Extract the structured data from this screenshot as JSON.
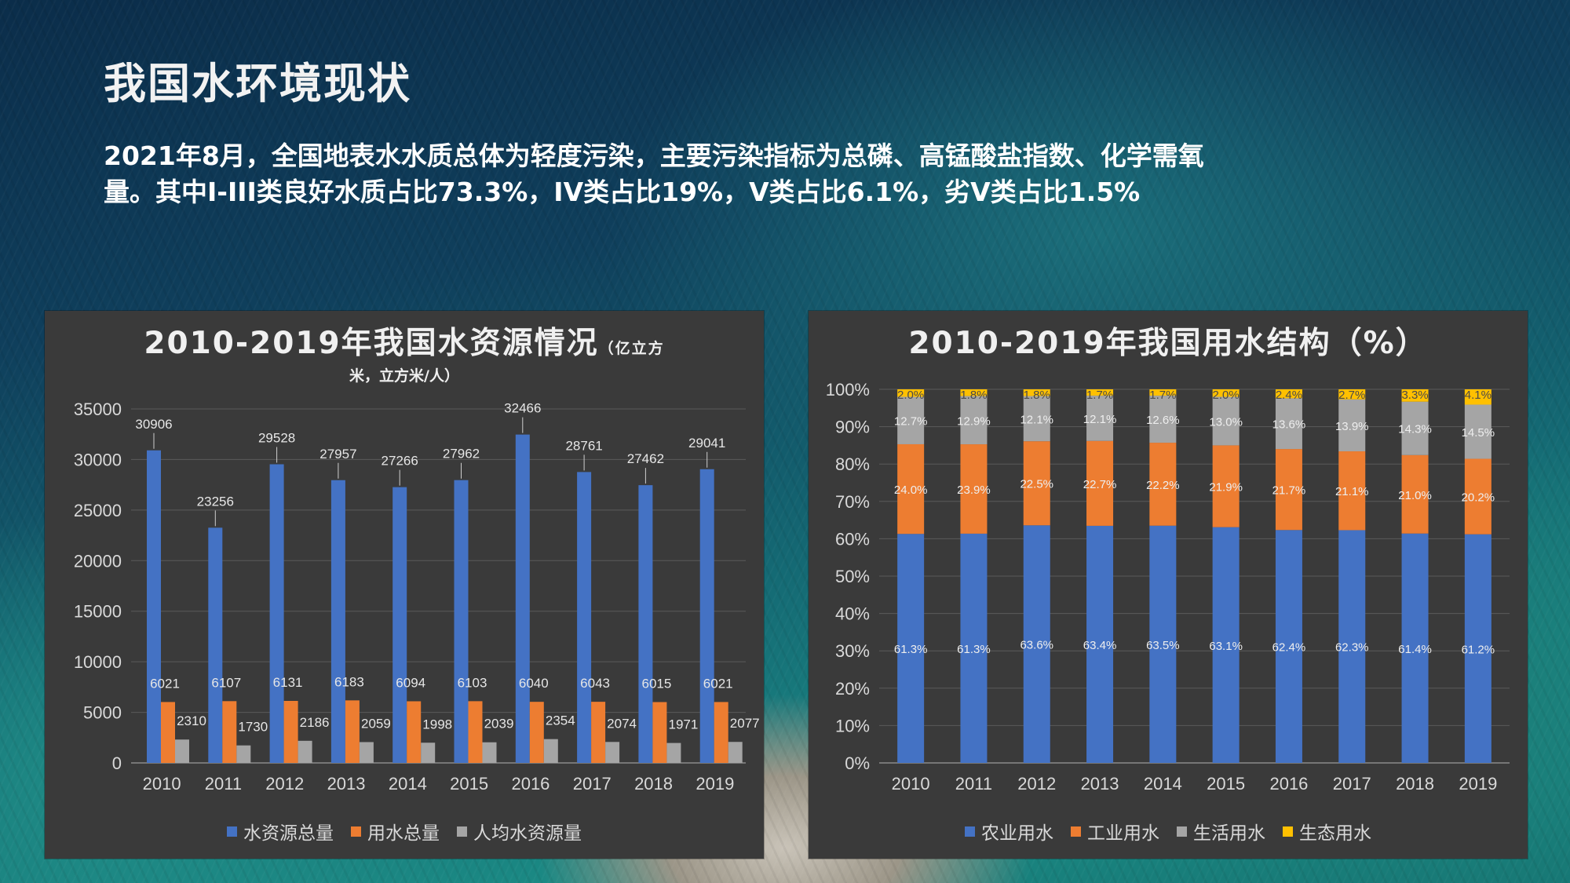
{
  "page": {
    "title": "我国水环境现状",
    "summary_line1": "2021年8月，全国地表水水质总体为轻度污染，主要污染指标为总磷、高锰酸盐指数、化学需氧",
    "summary_line2": "量。其中I-III类良好水质占比73.3%，IV类占比19%，V类占比6.1%，劣V类占比1.5%"
  },
  "colors": {
    "blue": "#4472c4",
    "orange": "#ed7d31",
    "gray": "#a5a5a5",
    "yellow": "#ffc000",
    "panel": "#3a3a3a"
  },
  "chart_data": [
    {
      "type": "bar",
      "title": "2010-2019年我国水资源情况",
      "title_unit_part1": "（亿立方",
      "title_unit_part2": "米，立方米/人）",
      "categories": [
        "2010",
        "2011",
        "2012",
        "2013",
        "2014",
        "2015",
        "2016",
        "2017",
        "2018",
        "2019"
      ],
      "series": [
        {
          "name": "水资源总量",
          "values": [
            30906,
            23256,
            29528,
            27957,
            27266,
            27962,
            32466,
            28761,
            27462,
            29041
          ]
        },
        {
          "name": "用水总量",
          "values": [
            6021,
            6107,
            6131,
            6183,
            6094,
            6103,
            6040,
            6043,
            6015,
            6021
          ]
        },
        {
          "name": "人均水资源量",
          "values": [
            2310,
            1730,
            2186,
            2059,
            1998,
            2039,
            2354,
            2074,
            1971,
            2077
          ]
        }
      ],
      "ylim": [
        0,
        35000
      ],
      "yticks": [
        "0",
        "5000",
        "10000",
        "15000",
        "20000",
        "25000",
        "30000",
        "35000"
      ],
      "grid": true,
      "legend": "bottom"
    },
    {
      "type": "bar",
      "stacked": "percent",
      "title": "2010-2019年我国用水结构（%）",
      "categories": [
        "2010",
        "2011",
        "2012",
        "2013",
        "2014",
        "2015",
        "2016",
        "2017",
        "2018",
        "2019"
      ],
      "series": [
        {
          "name": "农业用水",
          "values": [
            61.3,
            61.3,
            63.6,
            63.4,
            63.5,
            63.1,
            62.4,
            62.3,
            61.4,
            61.2
          ],
          "labels": [
            "61.3%",
            "61.3%",
            "63.6%",
            "63.4%",
            "63.5%",
            "63.1%",
            "62.4%",
            "62.3%",
            "61.4%",
            "61.2%"
          ]
        },
        {
          "name": "工业用水",
          "values": [
            24.0,
            23.9,
            22.5,
            22.7,
            22.2,
            21.9,
            21.7,
            21.1,
            21.0,
            20.2
          ],
          "labels": [
            "24.0%",
            "23.9%",
            "22.5%",
            "22.7%",
            "22.2%",
            "21.9%",
            "21.7%",
            "21.1%",
            "21.0%",
            "20.2%"
          ]
        },
        {
          "name": "生活用水",
          "values": [
            12.7,
            12.9,
            12.1,
            12.1,
            12.6,
            13.0,
            13.6,
            13.9,
            14.3,
            14.5
          ],
          "labels": [
            "12.7%",
            "12.9%",
            "12.1%",
            "12.1%",
            "12.6%",
            "13.0%",
            "13.6%",
            "13.9%",
            "14.3%",
            "14.5%"
          ]
        },
        {
          "name": "生态用水",
          "values": [
            2.0,
            1.8,
            1.8,
            1.7,
            1.7,
            2.0,
            2.4,
            2.7,
            3.3,
            4.1
          ],
          "labels": [
            "2.0%",
            "1.8%",
            "1.8%",
            "1.7%",
            "1.7%",
            "2.0%",
            "2.4%",
            "2.7%",
            "3.3%",
            "4.1%"
          ]
        }
      ],
      "ylim": [
        0,
        100
      ],
      "yticks": [
        "0%",
        "10%",
        "20%",
        "30%",
        "40%",
        "50%",
        "60%",
        "70%",
        "80%",
        "90%",
        "100%"
      ],
      "grid": true,
      "legend": "bottom"
    }
  ]
}
